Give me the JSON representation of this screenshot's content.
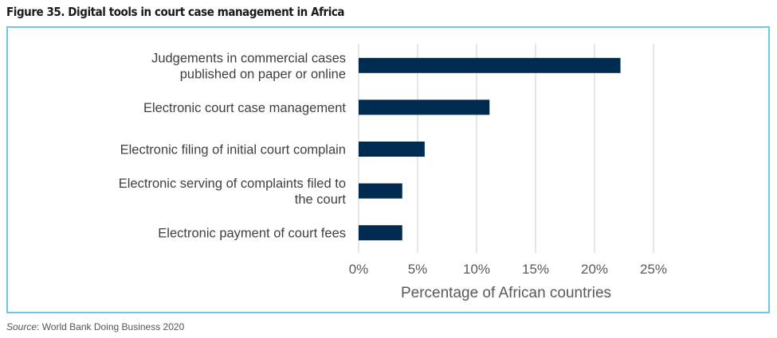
{
  "title": "Figure 35. Digital tools in court case management in Africa",
  "source": {
    "label": "Source",
    "text": ": World Bank Doing Business 2020"
  },
  "chart_data": {
    "type": "bar",
    "orientation": "horizontal",
    "categories": [
      [
        "Judgements in commercial cases",
        "published on paper or online"
      ],
      [
        "Electronic court case management"
      ],
      [
        "Electronic filing of initial court complain"
      ],
      [
        "Electronic serving of complaints filed to",
        "the court"
      ],
      [
        "Electronic payment of court fees"
      ]
    ],
    "values": [
      22.2,
      11.1,
      5.6,
      3.7,
      3.7
    ],
    "xlabel": "Percentage of African countries",
    "ylabel": "",
    "xlim": [
      0,
      25
    ],
    "xticks": [
      0,
      5,
      10,
      15,
      20,
      25
    ],
    "tick_labels": [
      "0%",
      "5%",
      "10%",
      "15%",
      "20%",
      "25%"
    ],
    "grid": true,
    "bar_color": "#002b50",
    "grid_color": "#d9d9d9"
  }
}
